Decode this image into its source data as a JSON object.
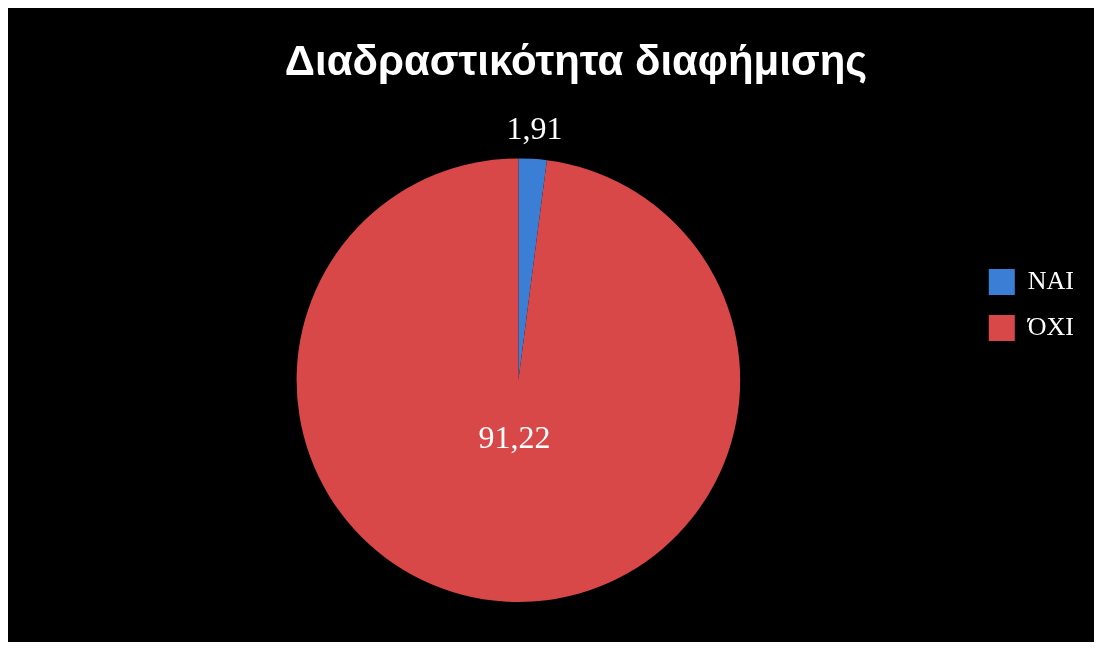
{
  "chart_data": {
    "type": "pie",
    "title": "Διαδραστικότητα διαφήμισης",
    "categories": [
      "ΝΑΙ",
      "ΌΧΙ"
    ],
    "values": [
      1.91,
      91.22
    ],
    "colors": [
      "#3a7fd5",
      "#d94848"
    ],
    "value_labels": [
      "1,91",
      "91,22"
    ],
    "legend": "right"
  }
}
